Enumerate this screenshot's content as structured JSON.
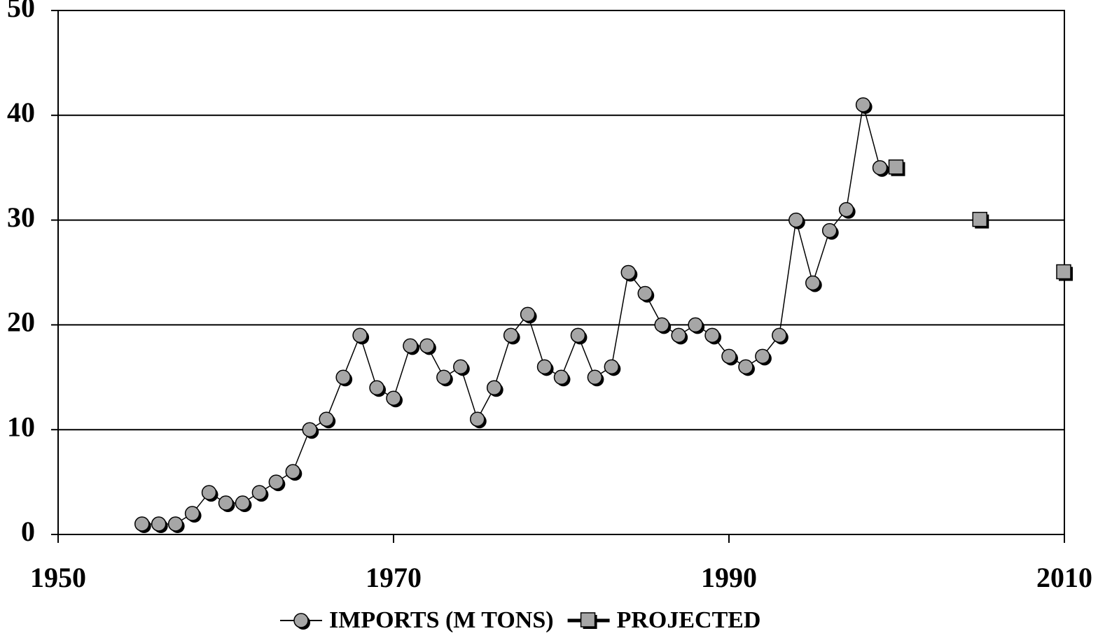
{
  "chart_data": {
    "type": "line",
    "x": [
      1955,
      1956,
      1957,
      1958,
      1959,
      1960,
      1961,
      1962,
      1963,
      1964,
      1965,
      1966,
      1967,
      1968,
      1969,
      1970,
      1971,
      1972,
      1973,
      1974,
      1975,
      1976,
      1977,
      1978,
      1979,
      1980,
      1981,
      1982,
      1983,
      1984,
      1985,
      1986,
      1987,
      1988,
      1989,
      1990,
      1991,
      1992,
      1993,
      1994,
      1995,
      1996,
      1997,
      1998,
      1999
    ],
    "series": [
      {
        "name": "IMPORTS (M TONS)",
        "color": "#a6a6a6",
        "marker": "circle",
        "line": true,
        "values": [
          1,
          1,
          1,
          2,
          4,
          3,
          3,
          4,
          5,
          6,
          10,
          11,
          15,
          19,
          14,
          13,
          18,
          18,
          15,
          16,
          11,
          14,
          19,
          21,
          16,
          15,
          19,
          15,
          16,
          25,
          23,
          20,
          19,
          20,
          19,
          17,
          16,
          17,
          19,
          30,
          24,
          29,
          31,
          41,
          35
        ]
      },
      {
        "name": "PROJECTED",
        "color": "#a6a6a6",
        "marker": "square",
        "line": false,
        "x": [
          2000,
          2005,
          2010
        ],
        "values": [
          35,
          30,
          25
        ]
      }
    ],
    "xlim": [
      1950,
      2010
    ],
    "xticks": [
      1950,
      1970,
      1990,
      2010
    ],
    "ylim": [
      0,
      50
    ],
    "yticks": [
      0,
      10,
      20,
      30,
      40,
      50
    ],
    "grid": true,
    "legend": "bottom"
  }
}
